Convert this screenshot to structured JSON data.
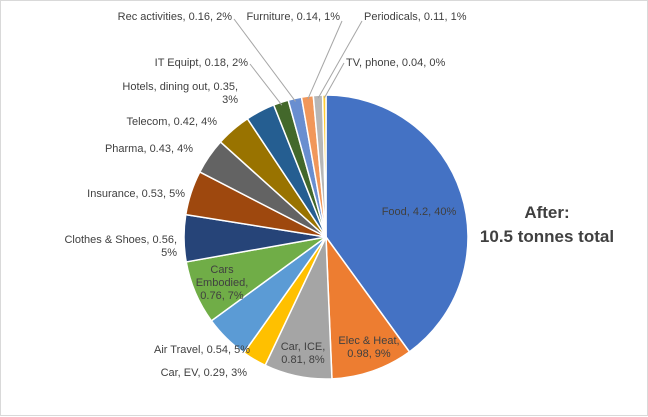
{
  "chart_data": {
    "type": "pie",
    "title_lines": [
      "After:",
      "10.5 tonnes total"
    ],
    "total": 10.5,
    "slices": [
      {
        "label": "Food",
        "value": 4.2,
        "percent": "40%",
        "color": "#4472C4",
        "text_lines": [
          "Food, 4.2, 40%"
        ],
        "text_color": "#404040"
      },
      {
        "label": "Elec & Heat",
        "value": 0.98,
        "percent": "9%",
        "color": "#ED7D31",
        "text_lines": [
          "Elec & Heat,",
          "0.98, 9%"
        ],
        "text_color": "#404040"
      },
      {
        "label": "Car, ICE",
        "value": 0.81,
        "percent": "8%",
        "color": "#A5A5A5",
        "text_lines": [
          "Car, ICE,",
          "0.81, 8%"
        ],
        "text_color": "#404040"
      },
      {
        "label": "Car, EV",
        "value": 0.29,
        "percent": "3%",
        "color": "#FFC000",
        "text_lines": [
          "Car, EV, 0.29, 3%"
        ],
        "text_color": "#404040"
      },
      {
        "label": "Air Travel",
        "value": 0.54,
        "percent": "5%",
        "color": "#5B9BD5",
        "text_lines": [
          "Air Travel, 0.54, 5%"
        ],
        "text_color": "#404040"
      },
      {
        "label": "Cars Embodied",
        "value": 0.76,
        "percent": "7%",
        "color": "#70AD47",
        "text_lines": [
          "Cars",
          "Embodied,",
          "0.76, 7%"
        ],
        "text_color": "#404040"
      },
      {
        "label": "Clothes & Shoes",
        "value": 0.56,
        "percent": "5%",
        "color": "#264478",
        "text_lines": [
          "Clothes & Shoes, 0.56,",
          "5%"
        ],
        "text_color": "#404040"
      },
      {
        "label": "Insurance",
        "value": 0.53,
        "percent": "5%",
        "color": "#9E480E",
        "text_lines": [
          "Insurance, 0.53, 5%"
        ],
        "text_color": "#404040"
      },
      {
        "label": "Pharma",
        "value": 0.43,
        "percent": "4%",
        "color": "#636363",
        "text_lines": [
          "Pharma, 0.43, 4%"
        ],
        "text_color": "#404040"
      },
      {
        "label": "Telecom",
        "value": 0.42,
        "percent": "4%",
        "color": "#997300",
        "text_lines": [
          "Telecom, 0.42, 4%"
        ],
        "text_color": "#404040"
      },
      {
        "label": "Hotels, dining out",
        "value": 0.35,
        "percent": "3%",
        "color": "#255E91",
        "text_lines": [
          "Hotels, dining out, 0.35,",
          "3%"
        ],
        "text_color": "#404040"
      },
      {
        "label": "IT Equipt",
        "value": 0.18,
        "percent": "2%",
        "color": "#43682B",
        "text_lines": [
          "IT Equipt, 0.18, 2%"
        ],
        "text_color": "#404040"
      },
      {
        "label": "Rec activities",
        "value": 0.16,
        "percent": "2%",
        "color": "#698ED0",
        "text_lines": [
          "Rec activities, 0.16, 2%"
        ],
        "text_color": "#404040"
      },
      {
        "label": "Furniture",
        "value": 0.14,
        "percent": "1%",
        "color": "#F1975A",
        "text_lines": [
          "Furniture, 0.14, 1%"
        ],
        "text_color": "#404040"
      },
      {
        "label": "Periodicals",
        "value": 0.11,
        "percent": "1%",
        "color": "#B7B7B7",
        "text_lines": [
          "Periodicals, 0.11, 1%"
        ],
        "text_color": "#404040"
      },
      {
        "label": "TV, phone",
        "value": 0.04,
        "percent": "0%",
        "color": "#FFCD33",
        "text_lines": [
          "TV, phone, 0.04, 0%"
        ],
        "text_color": "#404040"
      }
    ]
  }
}
